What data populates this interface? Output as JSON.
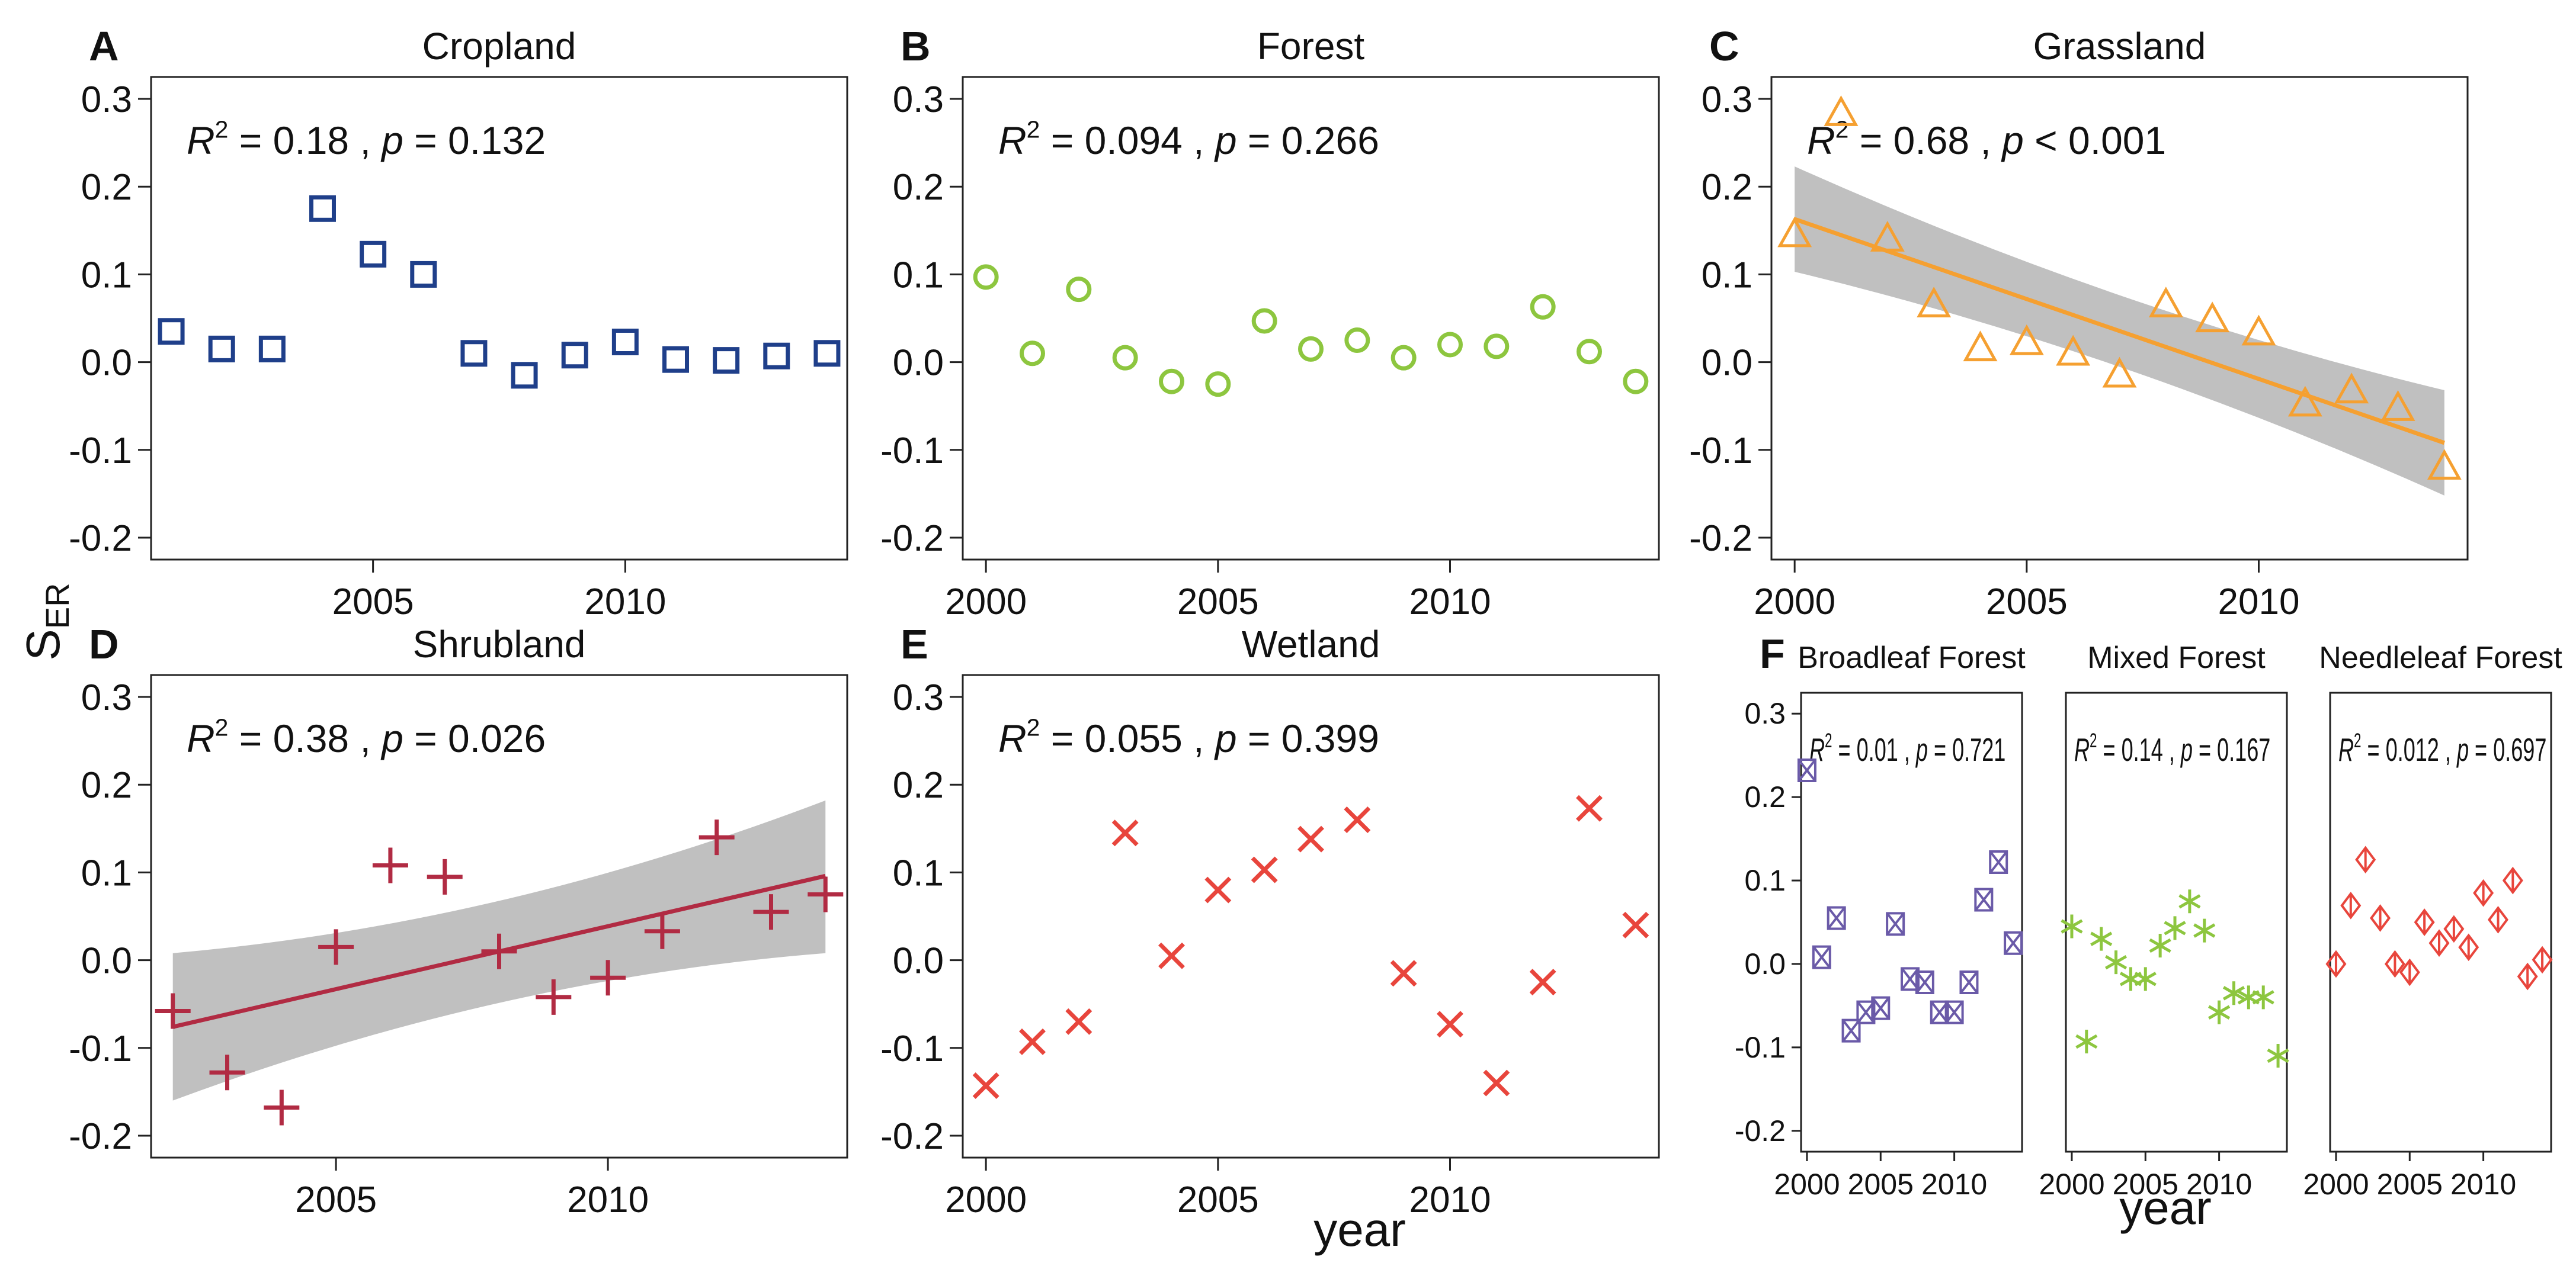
{
  "chart_data": [
    {
      "id": "A",
      "type": "scatter",
      "letter": "A",
      "title": "Cropland",
      "stats": {
        "r2_label": "R",
        "r2_sup": "2",
        "r2_text": " = 0.18 , ",
        "p_label": "p",
        "p_text": " = 0.132"
      },
      "x": [
        2001,
        2002,
        2003,
        2004,
        2005,
        2006,
        2007,
        2008,
        2009,
        2010,
        2011,
        2012,
        2013,
        2014
      ],
      "y": [
        0.035,
        0.015,
        0.015,
        0.175,
        0.123,
        0.1,
        0.01,
        -0.015,
        0.008,
        0.023,
        0.003,
        0.002,
        0.007,
        0.01
      ],
      "xlim": [
        2000.6,
        2014.4
      ],
      "ylim": [
        -0.225,
        0.325
      ],
      "xticks": [
        2005,
        2010
      ],
      "xtick_labels": [
        "2005",
        "2010"
      ],
      "yticks": [
        -0.2,
        -0.1,
        0,
        0.1,
        0.2,
        0.3
      ],
      "ytick_labels": [
        "-0.2",
        "-0.1",
        "0.0",
        "0.1",
        "0.2",
        "0.3"
      ],
      "marker": "square",
      "color": "#1f3f8a"
    },
    {
      "id": "B",
      "type": "scatter",
      "letter": "B",
      "title": "Forest",
      "stats": {
        "r2_label": "R",
        "r2_sup": "2",
        "r2_text": " = 0.094 , ",
        "p_label": "p",
        "p_text": " = 0.266"
      },
      "x": [
        2000,
        2001,
        2002,
        2003,
        2004,
        2005,
        2006,
        2007,
        2008,
        2009,
        2010,
        2011,
        2012,
        2013,
        2014
      ],
      "y": [
        0.097,
        0.01,
        0.083,
        0.005,
        -0.022,
        -0.025,
        0.047,
        0.015,
        0.025,
        0.005,
        0.02,
        0.018,
        0.063,
        0.012,
        -0.022
      ],
      "xlim": [
        1999.5,
        2014.5
      ],
      "ylim": [
        -0.225,
        0.325
      ],
      "xticks": [
        2000,
        2005,
        2010
      ],
      "xtick_labels": [
        "2000",
        "2005",
        "2010"
      ],
      "yticks": [
        -0.2,
        -0.1,
        0,
        0.1,
        0.2,
        0.3
      ],
      "ytick_labels": [
        "-0.2",
        "-0.1",
        "0.0",
        "0.1",
        "0.2",
        "0.3"
      ],
      "marker": "circle",
      "color": "#8dc63f"
    },
    {
      "id": "C",
      "type": "scatter",
      "letter": "C",
      "title": "Grassland",
      "stats": {
        "r2_label": "R",
        "r2_sup": "2",
        "r2_text": " = 0.68 , ",
        "p_label": "p",
        "p_text": " < 0.001"
      },
      "x": [
        2000,
        2001,
        2002,
        2003,
        2004,
        2005,
        2006,
        2007,
        2008,
        2009,
        2010,
        2011,
        2012,
        2013,
        2014
      ],
      "y": [
        0.145,
        0.283,
        0.14,
        0.065,
        0.015,
        0.022,
        0.01,
        -0.015,
        0.065,
        0.048,
        0.033,
        -0.048,
        -0.033,
        -0.053,
        -0.12
      ],
      "fit": {
        "x0": 2000,
        "y0": 0.163,
        "x1": 2014,
        "y1": -0.092,
        "ci_lower": [
          0.103,
          -0.152
        ],
        "ci_upper": [
          0.223,
          -0.032
        ],
        "color": "#f5a031"
      },
      "xlim": [
        1999.5,
        2014.5
      ],
      "ylim": [
        -0.225,
        0.325
      ],
      "xticks": [
        2000,
        2005,
        2010
      ],
      "xtick_labels": [
        "2000",
        "2005",
        "2010"
      ],
      "yticks": [
        -0.2,
        -0.1,
        0,
        0.1,
        0.2,
        0.3
      ],
      "ytick_labels": [
        "-0.2",
        "-0.1",
        "0.0",
        "0.1",
        "0.2",
        "0.3"
      ],
      "marker": "triangle",
      "color": "#f5a031"
    },
    {
      "id": "D",
      "type": "scatter",
      "letter": "D",
      "title": "Shrubland",
      "stats": {
        "r2_label": "R",
        "r2_sup": "2",
        "r2_text": " = 0.38 , ",
        "p_label": "p",
        "p_text": " = 0.026"
      },
      "x": [
        2002,
        2003,
        2004,
        2005,
        2006,
        2007,
        2008,
        2009,
        2010,
        2011,
        2012,
        2013,
        2014
      ],
      "y": [
        -0.058,
        -0.128,
        -0.168,
        0.015,
        0.108,
        0.095,
        0.01,
        -0.042,
        -0.02,
        0.033,
        0.14,
        0.055,
        0.075
      ],
      "fit": {
        "x0": 2002,
        "y0": -0.076,
        "x1": 2014,
        "y1": 0.096,
        "ci_lower": [
          -0.16,
          0.008
        ],
        "ci_upper": [
          0.008,
          0.182
        ],
        "color": "#b12b43"
      },
      "xlim": [
        2001.6,
        2014.4
      ],
      "ylim": [
        -0.225,
        0.325
      ],
      "xticks": [
        2005,
        2010
      ],
      "xtick_labels": [
        "2005",
        "2010"
      ],
      "yticks": [
        -0.2,
        -0.1,
        0,
        0.1,
        0.2,
        0.3
      ],
      "ytick_labels": [
        "-0.2",
        "-0.1",
        "0.0",
        "0.1",
        "0.2",
        "0.3"
      ],
      "marker": "plus",
      "color": "#b12b43"
    },
    {
      "id": "E",
      "type": "scatter",
      "letter": "E",
      "title": "Wetland",
      "stats": {
        "r2_label": "R",
        "r2_sup": "2",
        "r2_text": " = 0.055 , ",
        "p_label": "p",
        "p_text": " = 0.399"
      },
      "x": [
        2000,
        2001,
        2002,
        2003,
        2004,
        2005,
        2006,
        2007,
        2008,
        2009,
        2010,
        2011,
        2012,
        2013,
        2014
      ],
      "y": [
        -0.143,
        -0.093,
        -0.07,
        0.145,
        0.005,
        0.08,
        0.103,
        0.138,
        0.16,
        -0.015,
        -0.073,
        -0.14,
        -0.025,
        0.173,
        0.04
      ],
      "xlim": [
        1999.5,
        2014.5
      ],
      "ylim": [
        -0.225,
        0.325
      ],
      "xticks": [
        2000,
        2005,
        2010
      ],
      "xtick_labels": [
        "2000",
        "2005",
        "2010"
      ],
      "yticks": [
        -0.2,
        -0.1,
        0,
        0.1,
        0.2,
        0.3
      ],
      "ytick_labels": [
        "-0.2",
        "-0.1",
        "0.0",
        "0.1",
        "0.2",
        "0.3"
      ],
      "marker": "x",
      "color": "#e8453c"
    },
    {
      "id": "F1",
      "type": "scatter",
      "letter": "F",
      "title": "Broadleaf Forest",
      "stats": {
        "r2_label": "R",
        "r2_sup": "2",
        "r2_text": " = 0.01 , ",
        "p_label": "p",
        "p_text": " = 0.721"
      },
      "x": [
        2000,
        2001,
        2002,
        2003,
        2004,
        2005,
        2006,
        2007,
        2008,
        2009,
        2010,
        2011,
        2012,
        2013,
        2014
      ],
      "y": [
        0.232,
        0.008,
        0.055,
        -0.08,
        -0.058,
        -0.053,
        0.048,
        -0.018,
        -0.022,
        -0.058,
        -0.058,
        -0.022,
        0.077,
        0.122,
        0.025
      ],
      "xlim": [
        1999.6,
        2014.6
      ],
      "ylim": [
        -0.225,
        0.325
      ],
      "xticks": [
        2000,
        2005,
        2010
      ],
      "xtick_labels": [
        "2000",
        "2005",
        "2010"
      ],
      "yticks": [
        -0.2,
        -0.1,
        0,
        0.1,
        0.2,
        0.3
      ],
      "ytick_labels": [
        "-0.2",
        "-0.1",
        "0.0",
        "0.1",
        "0.2",
        "0.3"
      ],
      "marker": "boxcross",
      "color": "#6a5aa8"
    },
    {
      "id": "F2",
      "type": "scatter",
      "title": "Mixed Forest",
      "stats": {
        "r2_label": "R",
        "r2_sup": "2",
        "r2_text": " = 0.14 , ",
        "p_label": "p",
        "p_text": " = 0.167"
      },
      "x": [
        2000,
        2001,
        2002,
        2003,
        2004,
        2005,
        2006,
        2007,
        2008,
        2009,
        2010,
        2011,
        2012,
        2013,
        2014
      ],
      "y": [
        0.045,
        -0.093,
        0.03,
        0.002,
        -0.018,
        -0.018,
        0.022,
        0.043,
        0.075,
        0.04,
        -0.058,
        -0.035,
        -0.04,
        -0.04,
        -0.11
      ],
      "xlim": [
        1999.6,
        2014.6
      ],
      "ylim": [
        -0.225,
        0.325
      ],
      "xticks": [
        2000,
        2005,
        2010
      ],
      "xtick_labels": [
        "2000",
        "2005",
        "2010"
      ],
      "yticks": [],
      "ytick_labels": [],
      "marker": "asterisk",
      "color": "#8dc63f"
    },
    {
      "id": "F3",
      "type": "scatter",
      "title": "Needleleaf Forest",
      "stats": {
        "r2_label": "R",
        "r2_sup": "2",
        "r2_text": " = 0.012 , ",
        "p_label": "p",
        "p_text": " = 0.697"
      },
      "x": [
        2000,
        2001,
        2002,
        2003,
        2004,
        2005,
        2006,
        2007,
        2008,
        2009,
        2010,
        2011,
        2012,
        2013,
        2014
      ],
      "y": [
        0.0,
        0.07,
        0.125,
        0.055,
        0.0,
        -0.01,
        0.05,
        0.025,
        0.042,
        0.02,
        0.085,
        0.053,
        0.1,
        -0.015,
        0.005
      ],
      "xlim": [
        1999.6,
        2014.6
      ],
      "ylim": [
        -0.225,
        0.325
      ],
      "xticks": [
        2000,
        2005,
        2010
      ],
      "xtick_labels": [
        "2000",
        "2005",
        "2010"
      ],
      "yticks": [],
      "ytick_labels": [],
      "marker": "diamond",
      "color": "#e8453c"
    }
  ],
  "labels": {
    "y_axis_main": "S",
    "y_axis_sub": "ER",
    "x_axis_main": "year",
    "x_axis_f": "year"
  }
}
